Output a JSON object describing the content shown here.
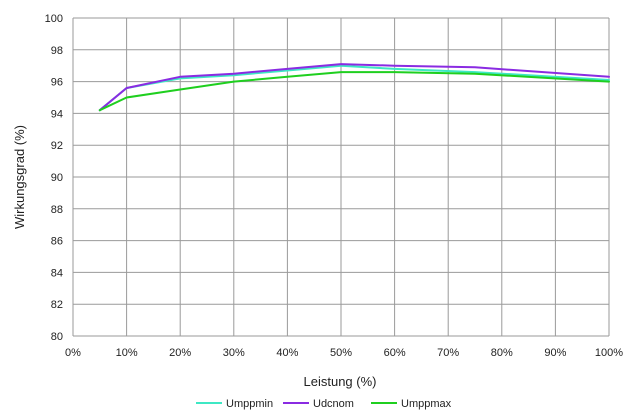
{
  "chart_data": {
    "type": "line",
    "title": "",
    "xlabel": "Leistung (%)",
    "ylabel": "Wirkungsgrad (%)",
    "xlim": [
      0,
      100
    ],
    "ylim": [
      80,
      100
    ],
    "x_ticks": [
      0,
      10,
      20,
      30,
      40,
      50,
      60,
      70,
      80,
      90,
      100
    ],
    "x_tick_labels": [
      "0%",
      "10%",
      "20%",
      "30%",
      "40%",
      "50%",
      "60%",
      "70%",
      "80%",
      "90%",
      "100%"
    ],
    "y_ticks": [
      80,
      82,
      84,
      86,
      88,
      90,
      92,
      94,
      96,
      98,
      100
    ],
    "y_tick_labels": [
      "80",
      "82",
      "84",
      "86",
      "88",
      "90",
      "92",
      "94",
      "96",
      "98",
      "100"
    ],
    "grid": true,
    "legend_position": "bottom",
    "series": [
      {
        "name": "Umppmin",
        "color": "#3ee8c4",
        "x": [
          5,
          10,
          20,
          30,
          40,
          50,
          60,
          75,
          100
        ],
        "values": [
          94.2,
          95.6,
          96.2,
          96.4,
          96.7,
          97.0,
          96.8,
          96.6,
          96.1
        ]
      },
      {
        "name": "Udcnom",
        "color": "#8a2be2",
        "x": [
          5,
          10,
          20,
          30,
          40,
          50,
          60,
          75,
          100
        ],
        "values": [
          94.2,
          95.6,
          96.3,
          96.5,
          96.8,
          97.1,
          97.0,
          96.9,
          96.3
        ]
      },
      {
        "name": "Umppmax",
        "color": "#1fcf1f",
        "x": [
          5,
          10,
          20,
          30,
          40,
          50,
          60,
          75,
          100
        ],
        "values": [
          94.2,
          95.0,
          95.5,
          96.0,
          96.3,
          96.6,
          96.6,
          96.5,
          96.0
        ]
      }
    ]
  }
}
